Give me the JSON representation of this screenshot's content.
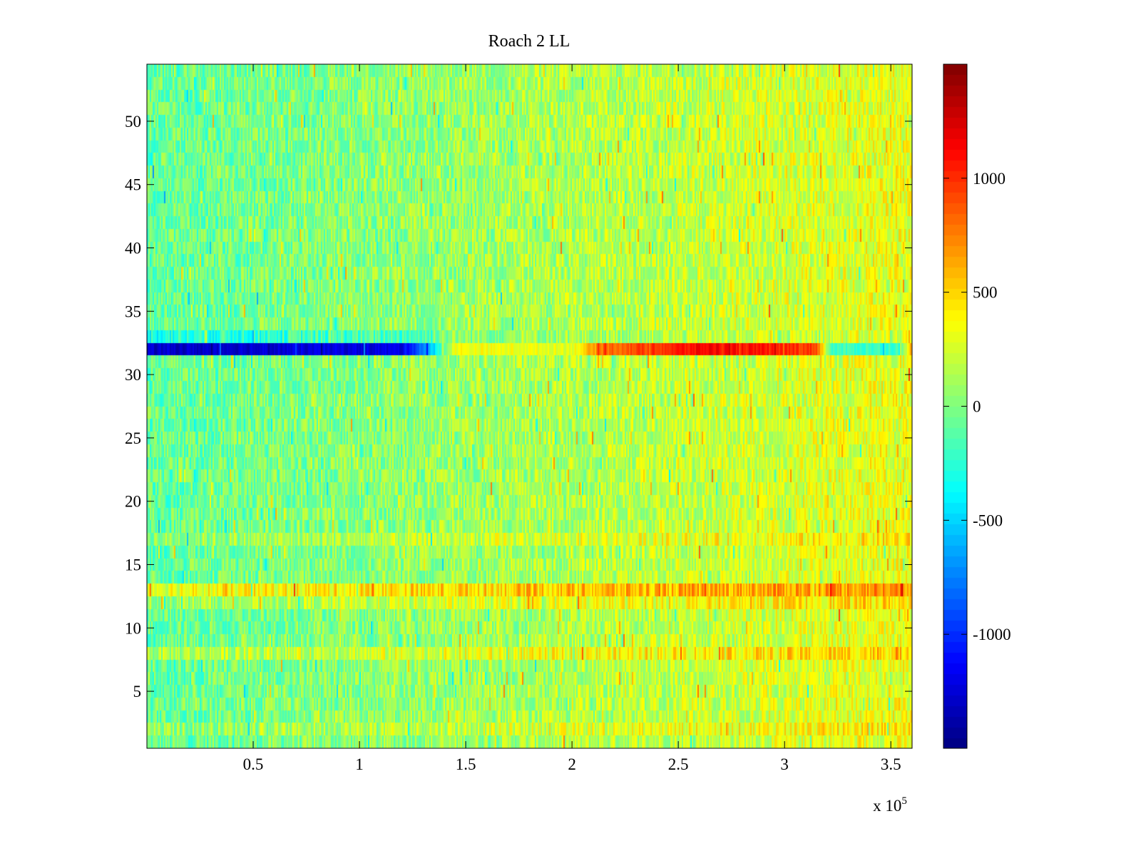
{
  "chart_data": {
    "type": "heatmap",
    "title": "Roach 2 LL",
    "xlabel": "",
    "ylabel": "",
    "x_exponent": {
      "prefix": "x 10",
      "power": "5"
    },
    "xlim": [
      0,
      360000
    ],
    "ylim": [
      0.5,
      54.5
    ],
    "x_ticks": [
      {
        "value": 0.5,
        "label": "0.5"
      },
      {
        "value": 1,
        "label": "1"
      },
      {
        "value": 1.5,
        "label": "1.5"
      },
      {
        "value": 2,
        "label": "2"
      },
      {
        "value": 2.5,
        "label": "2.5"
      },
      {
        "value": 3,
        "label": "3"
      },
      {
        "value": 3.5,
        "label": "3.5"
      }
    ],
    "y_ticks": [
      {
        "value": 5,
        "label": "5"
      },
      {
        "value": 10,
        "label": "10"
      },
      {
        "value": 15,
        "label": "15"
      },
      {
        "value": 20,
        "label": "20"
      },
      {
        "value": 25,
        "label": "25"
      },
      {
        "value": 30,
        "label": "30"
      },
      {
        "value": 35,
        "label": "35"
      },
      {
        "value": 40,
        "label": "40"
      },
      {
        "value": 45,
        "label": "45"
      },
      {
        "value": 50,
        "label": "50"
      }
    ],
    "rows": 54,
    "colorbar": {
      "colormap": "jet",
      "range": [
        -1500,
        1500
      ],
      "ticks": [
        {
          "value": 1000,
          "label": "1000"
        },
        {
          "value": 500,
          "label": "500"
        },
        {
          "value": 0,
          "label": "0"
        },
        {
          "value": -500,
          "label": "-500"
        },
        {
          "value": -1000,
          "label": "-1000"
        }
      ]
    },
    "pattern": {
      "base_value_start": -80,
      "base_value_end": 320,
      "noise_amplitude": 230,
      "row_offsets": [
        {
          "row": 2,
          "value": 120
        },
        {
          "row": 8,
          "value": 200
        },
        {
          "row": 12,
          "value": 160
        },
        {
          "row": 13,
          "value": 400
        },
        {
          "row": 17,
          "value": 120
        },
        {
          "row": 32,
          "value": -1300
        },
        {
          "row": 33,
          "value": -200
        }
      ],
      "highlight_row": 32,
      "highlight_profile": [
        [
          0,
          -1300
        ],
        [
          120000,
          -1200
        ],
        [
          135000,
          -500
        ],
        [
          145000,
          350
        ],
        [
          200000,
          300
        ],
        [
          215000,
          800
        ],
        [
          265000,
          1150
        ],
        [
          315000,
          950
        ],
        [
          322000,
          -200
        ],
        [
          355000,
          -200
        ],
        [
          360000,
          700
        ]
      ]
    },
    "grid": false,
    "legend": "none"
  }
}
